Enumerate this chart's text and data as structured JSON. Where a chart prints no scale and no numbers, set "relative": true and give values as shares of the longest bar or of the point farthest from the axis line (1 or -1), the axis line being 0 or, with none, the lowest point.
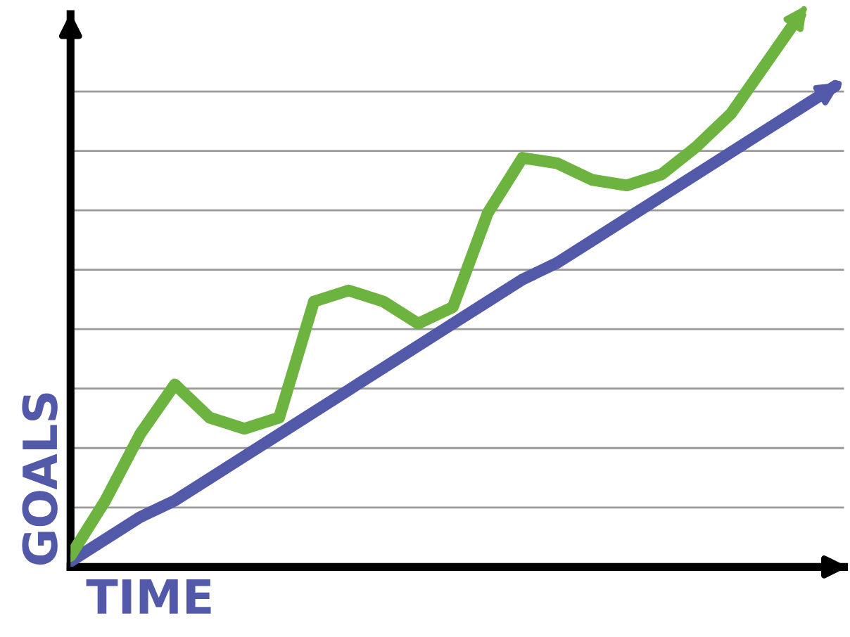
{
  "chart_data": {
    "type": "line",
    "relative": true,
    "xlabel": "TIME",
    "ylabel": "GOALS",
    "grid": "y",
    "marker": "none",
    "line_style": "solid",
    "categories": [
      null,
      null,
      null,
      null,
      null,
      null,
      null,
      null,
      null,
      null,
      null,
      null,
      null,
      null,
      null,
      null,
      null,
      null,
      null,
      null,
      null,
      null,
      null
    ],
    "series": [
      {
        "color": "#5159a8",
        "values": [
          0.01,
          0.05,
          0.09,
          0.12,
          0.16,
          0.2,
          0.24,
          0.28,
          0.32,
          0.36,
          0.4,
          0.44,
          0.48,
          0.52,
          0.55,
          0.59,
          0.63,
          0.67,
          0.71,
          0.75,
          0.79,
          0.83,
          0.87
        ]
      },
      {
        "color": "#6db33f",
        "values": [
          0.02,
          0.12,
          0.24,
          0.33,
          0.27,
          0.25,
          0.27,
          0.48,
          0.5,
          0.48,
          0.44,
          0.47,
          0.64,
          0.74,
          0.73,
          0.7,
          0.69,
          0.71,
          0.76,
          0.82,
          0.91,
          1.0,
          null
        ]
      }
    ]
  }
}
